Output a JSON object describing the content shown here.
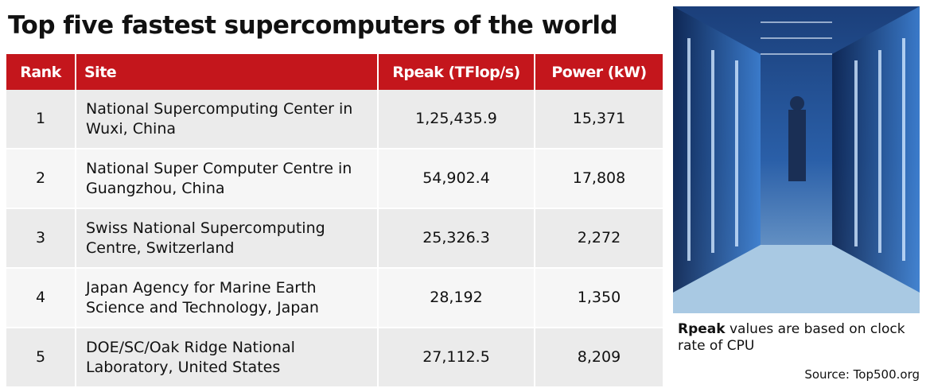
{
  "title": "Top five fastest supercomputers of the world",
  "table": {
    "columns": [
      "Rank",
      "Site",
      "Rpeak (TFlop/s)",
      "Power (kW)"
    ],
    "rows": [
      [
        "1",
        "National Supercomputing Center in Wuxi, China",
        "1,25,435.9",
        "15,371"
      ],
      [
        "2",
        "National Super Computer Centre in Guangzhou, China",
        "54,902.4",
        "17,808"
      ],
      [
        "3",
        "Swiss National Supercomputing Centre, Switzerland",
        "25,326.3",
        "2,272"
      ],
      [
        "4",
        "Japan Agency for Marine Earth Science and Technology, Japan",
        "28,192",
        "1,350"
      ],
      [
        "5",
        "DOE/SC/Oak Ridge National Laboratory, United States",
        "27,112.5",
        "8,209"
      ]
    ]
  },
  "caption": {
    "bold": "Rpeak",
    "text": "values are based on clock rate of CPU"
  },
  "source": "Source: Top500.org"
}
